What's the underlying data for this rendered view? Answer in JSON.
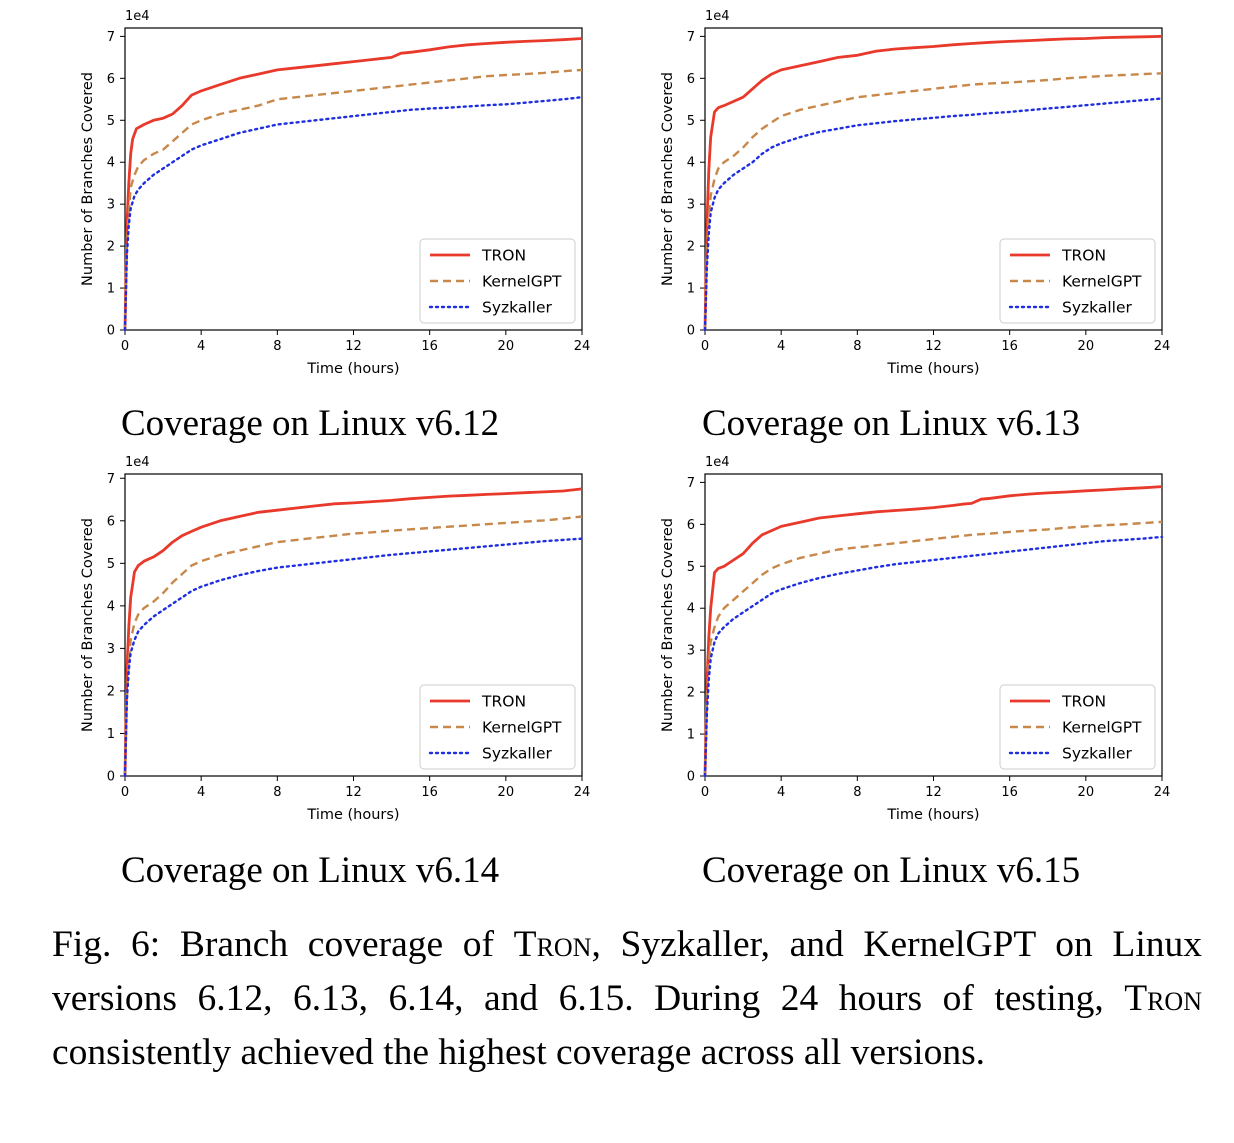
{
  "figure": {
    "caption_prefix": "Fig. 6: Branch coverage of ",
    "caption_tron1": "Tron",
    "caption_mid": ", Syzkaller, and KernelGPT on Linux versions 6.12, 6.13, 6.14, and 6.15. During 24 hours of testing, ",
    "caption_tron2": "Tron",
    "caption_suffix": " consistently achieved the highest coverage across all versions."
  },
  "chart_data": [
    {
      "type": "line",
      "subcaption": "Coverage on Linux v6.12",
      "xlabel": "Time (hours)",
      "ylabel": "Number of Branches Covered",
      "xlim": [
        0,
        24
      ],
      "ylim": [
        0,
        7.2
      ],
      "y_multiplier": "1e4",
      "xticks": [
        "0",
        "4",
        "8",
        "12",
        "16",
        "20",
        "24"
      ],
      "yticks": [
        "0",
        "1",
        "2",
        "3",
        "4",
        "5",
        "6",
        "7"
      ],
      "legend": "lower-right",
      "series": [
        {
          "name": "TRON",
          "color": "#e8392b",
          "style": "solid",
          "x": [
            0,
            0.1,
            0.2,
            0.3,
            0.4,
            0.6,
            0.8,
            1.0,
            1.5,
            2.0,
            2.5,
            3.0,
            3.5,
            4.0,
            5.0,
            6.0,
            7.0,
            8.0,
            9.0,
            10.0,
            11.0,
            12.0,
            13.0,
            14.0,
            14.5,
            15.0,
            16.0,
            17.0,
            18.0,
            19.0,
            20.0,
            21.0,
            22.0,
            23.0,
            24.0
          ],
          "y": [
            0,
            2.5,
            3.5,
            4.2,
            4.55,
            4.8,
            4.85,
            4.9,
            5.0,
            5.05,
            5.15,
            5.35,
            5.6,
            5.7,
            5.85,
            6.0,
            6.1,
            6.2,
            6.25,
            6.3,
            6.35,
            6.4,
            6.45,
            6.5,
            6.6,
            6.62,
            6.68,
            6.75,
            6.8,
            6.83,
            6.86,
            6.88,
            6.9,
            6.92,
            6.95
          ]
        },
        {
          "name": "KernelGPT",
          "color": "#c8884a",
          "style": "dashed",
          "x": [
            0,
            0.1,
            0.2,
            0.3,
            0.5,
            0.7,
            1.0,
            1.5,
            2.0,
            2.5,
            3.0,
            3.5,
            4.0,
            5.0,
            6.0,
            7.0,
            8.0,
            9.0,
            10.0,
            11.0,
            12.0,
            13.0,
            14.0,
            15.0,
            16.0,
            17.0,
            18.0,
            19.0,
            20.0,
            21.0,
            22.0,
            23.0,
            24.0
          ],
          "y": [
            0,
            2.0,
            2.8,
            3.4,
            3.7,
            3.9,
            4.05,
            4.2,
            4.3,
            4.5,
            4.7,
            4.9,
            5.0,
            5.15,
            5.25,
            5.35,
            5.5,
            5.55,
            5.6,
            5.65,
            5.7,
            5.75,
            5.8,
            5.85,
            5.9,
            5.95,
            6.0,
            6.05,
            6.08,
            6.1,
            6.13,
            6.17,
            6.2
          ]
        },
        {
          "name": "Syzkaller",
          "color": "#1f2fe0",
          "style": "dotted",
          "x": [
            0,
            0.1,
            0.2,
            0.3,
            0.5,
            0.7,
            1.0,
            1.5,
            2.0,
            2.5,
            3.0,
            3.5,
            4.0,
            5.0,
            6.0,
            7.0,
            8.0,
            9.0,
            10.0,
            11.0,
            12.0,
            13.0,
            14.0,
            15.0,
            16.0,
            17.0,
            18.0,
            19.0,
            20.0,
            21.0,
            22.0,
            23.0,
            24.0
          ],
          "y": [
            0,
            1.8,
            2.5,
            2.9,
            3.2,
            3.35,
            3.5,
            3.7,
            3.85,
            4.0,
            4.15,
            4.3,
            4.4,
            4.55,
            4.7,
            4.8,
            4.9,
            4.95,
            5.0,
            5.05,
            5.1,
            5.15,
            5.2,
            5.25,
            5.28,
            5.3,
            5.33,
            5.36,
            5.38,
            5.42,
            5.46,
            5.5,
            5.55
          ]
        }
      ]
    },
    {
      "type": "line",
      "subcaption": "Coverage on Linux v6.13",
      "xlabel": "Time (hours)",
      "ylabel": "Number of Branches Covered",
      "xlim": [
        0,
        24
      ],
      "ylim": [
        0,
        7.2
      ],
      "y_multiplier": "1e4",
      "xticks": [
        "0",
        "4",
        "8",
        "12",
        "16",
        "20",
        "24"
      ],
      "yticks": [
        "0",
        "1",
        "2",
        "3",
        "4",
        "5",
        "6",
        "7"
      ],
      "legend": "lower-right",
      "series": [
        {
          "name": "TRON",
          "color": "#e8392b",
          "style": "solid",
          "x": [
            0,
            0.1,
            0.2,
            0.3,
            0.5,
            0.7,
            1.0,
            1.5,
            2.0,
            2.5,
            3.0,
            3.5,
            4.0,
            5.0,
            6.0,
            7.0,
            8.0,
            9.0,
            10.0,
            11.0,
            12.0,
            13.0,
            14.0,
            15.0,
            16.0,
            17.0,
            18.0,
            19.0,
            20.0,
            21.0,
            22.0,
            23.0,
            24.0
          ],
          "y": [
            0,
            2.5,
            3.8,
            4.6,
            5.2,
            5.3,
            5.35,
            5.45,
            5.55,
            5.75,
            5.95,
            6.1,
            6.2,
            6.3,
            6.4,
            6.5,
            6.55,
            6.65,
            6.7,
            6.73,
            6.76,
            6.8,
            6.83,
            6.86,
            6.88,
            6.9,
            6.92,
            6.94,
            6.95,
            6.97,
            6.98,
            6.99,
            7.0
          ]
        },
        {
          "name": "KernelGPT",
          "color": "#c8884a",
          "style": "dashed",
          "x": [
            0,
            0.1,
            0.2,
            0.3,
            0.5,
            0.7,
            1.0,
            1.5,
            2.0,
            2.5,
            3.0,
            3.5,
            4.0,
            5.0,
            6.0,
            7.0,
            8.0,
            9.0,
            10.0,
            11.0,
            12.0,
            13.0,
            14.0,
            15.0,
            16.0,
            17.0,
            18.0,
            19.0,
            20.0,
            21.0,
            22.0,
            23.0,
            24.0
          ],
          "y": [
            0,
            1.8,
            2.7,
            3.2,
            3.6,
            3.85,
            4.0,
            4.15,
            4.35,
            4.6,
            4.8,
            4.95,
            5.1,
            5.25,
            5.35,
            5.45,
            5.55,
            5.6,
            5.65,
            5.7,
            5.75,
            5.8,
            5.85,
            5.88,
            5.9,
            5.93,
            5.96,
            6.0,
            6.03,
            6.06,
            6.08,
            6.1,
            6.12
          ]
        },
        {
          "name": "Syzkaller",
          "color": "#1f2fe0",
          "style": "dotted",
          "x": [
            0,
            0.1,
            0.2,
            0.3,
            0.5,
            0.7,
            1.0,
            1.5,
            2.0,
            2.5,
            3.0,
            3.5,
            4.0,
            5.0,
            6.0,
            7.0,
            8.0,
            9.0,
            10.0,
            11.0,
            12.0,
            13.0,
            14.0,
            15.0,
            16.0,
            17.0,
            18.0,
            19.0,
            20.0,
            21.0,
            22.0,
            23.0,
            24.0
          ],
          "y": [
            0,
            1.5,
            2.3,
            2.8,
            3.15,
            3.35,
            3.5,
            3.7,
            3.85,
            4.0,
            4.2,
            4.35,
            4.45,
            4.6,
            4.72,
            4.8,
            4.88,
            4.93,
            4.98,
            5.02,
            5.06,
            5.1,
            5.13,
            5.17,
            5.2,
            5.24,
            5.28,
            5.32,
            5.36,
            5.4,
            5.44,
            5.48,
            5.52
          ]
        }
      ]
    },
    {
      "type": "line",
      "subcaption": "Coverage on Linux v6.14",
      "xlabel": "Time (hours)",
      "ylabel": "Number of Branches Covered",
      "xlim": [
        0,
        24
      ],
      "ylim": [
        0,
        7.1
      ],
      "y_multiplier": "1e4",
      "xticks": [
        "0",
        "4",
        "8",
        "12",
        "16",
        "20",
        "24"
      ],
      "yticks": [
        "0",
        "1",
        "2",
        "3",
        "4",
        "5",
        "6",
        "7"
      ],
      "legend": "lower-right",
      "series": [
        {
          "name": "TRON",
          "color": "#e8392b",
          "style": "solid",
          "x": [
            0,
            0.1,
            0.2,
            0.3,
            0.5,
            0.7,
            1.0,
            1.5,
            2.0,
            2.5,
            3.0,
            3.5,
            4.0,
            5.0,
            6.0,
            7.0,
            8.0,
            9.0,
            10.0,
            11.0,
            12.0,
            13.0,
            14.0,
            15.0,
            16.0,
            17.0,
            18.0,
            19.0,
            20.0,
            21.0,
            22.0,
            23.0,
            24.0
          ],
          "y": [
            0,
            2.5,
            3.5,
            4.2,
            4.8,
            4.95,
            5.05,
            5.15,
            5.3,
            5.5,
            5.65,
            5.75,
            5.85,
            6.0,
            6.1,
            6.2,
            6.25,
            6.3,
            6.35,
            6.4,
            6.42,
            6.45,
            6.48,
            6.52,
            6.55,
            6.58,
            6.6,
            6.62,
            6.64,
            6.66,
            6.68,
            6.7,
            6.75
          ]
        },
        {
          "name": "KernelGPT",
          "color": "#c8884a",
          "style": "dashed",
          "x": [
            0,
            0.1,
            0.2,
            0.3,
            0.5,
            0.7,
            1.0,
            1.5,
            2.0,
            2.5,
            3.0,
            3.5,
            4.0,
            5.0,
            6.0,
            7.0,
            8.0,
            9.0,
            10.0,
            11.0,
            12.0,
            13.0,
            14.0,
            15.0,
            16.0,
            17.0,
            18.0,
            19.0,
            20.0,
            21.0,
            22.0,
            23.0,
            24.0
          ],
          "y": [
            0,
            1.8,
            2.7,
            3.2,
            3.6,
            3.8,
            3.95,
            4.1,
            4.3,
            4.55,
            4.75,
            4.95,
            5.05,
            5.2,
            5.3,
            5.4,
            5.5,
            5.55,
            5.6,
            5.65,
            5.7,
            5.73,
            5.77,
            5.8,
            5.83,
            5.86,
            5.89,
            5.92,
            5.95,
            5.98,
            6.01,
            6.05,
            6.1
          ]
        },
        {
          "name": "Syzkaller",
          "color": "#1f2fe0",
          "style": "dotted",
          "x": [
            0,
            0.1,
            0.2,
            0.3,
            0.5,
            0.7,
            1.0,
            1.5,
            2.0,
            2.5,
            3.0,
            3.5,
            4.0,
            5.0,
            6.0,
            7.0,
            8.0,
            9.0,
            10.0,
            11.0,
            12.0,
            13.0,
            14.0,
            15.0,
            16.0,
            17.0,
            18.0,
            19.0,
            20.0,
            21.0,
            22.0,
            23.0,
            24.0
          ],
          "y": [
            0,
            1.8,
            2.5,
            2.9,
            3.2,
            3.4,
            3.55,
            3.75,
            3.9,
            4.05,
            4.2,
            4.35,
            4.45,
            4.6,
            4.72,
            4.82,
            4.9,
            4.95,
            5.0,
            5.05,
            5.1,
            5.15,
            5.2,
            5.24,
            5.28,
            5.32,
            5.36,
            5.4,
            5.44,
            5.48,
            5.52,
            5.55,
            5.58
          ]
        }
      ]
    },
    {
      "type": "line",
      "subcaption": "Coverage on Linux v6.15",
      "xlabel": "Time (hours)",
      "ylabel": "Number of Branches Covered",
      "xlim": [
        0,
        24
      ],
      "ylim": [
        0,
        7.2
      ],
      "y_multiplier": "1e4",
      "xticks": [
        "0",
        "4",
        "8",
        "12",
        "16",
        "20",
        "24"
      ],
      "yticks": [
        "0",
        "1",
        "2",
        "3",
        "4",
        "5",
        "6",
        "7"
      ],
      "legend": "lower-right",
      "series": [
        {
          "name": "TRON",
          "color": "#e8392b",
          "style": "solid",
          "x": [
            0,
            0.1,
            0.2,
            0.3,
            0.5,
            0.7,
            1.0,
            1.5,
            2.0,
            2.5,
            3.0,
            3.5,
            4.0,
            5.0,
            6.0,
            7.0,
            8.0,
            9.0,
            10.0,
            11.0,
            12.0,
            13.0,
            13.5,
            14.0,
            14.5,
            15.0,
            16.0,
            17.0,
            18.0,
            19.0,
            20.0,
            21.0,
            22.0,
            23.0,
            24.0
          ],
          "y": [
            0,
            2.2,
            3.3,
            4.0,
            4.85,
            4.95,
            5.0,
            5.15,
            5.3,
            5.55,
            5.75,
            5.85,
            5.95,
            6.05,
            6.15,
            6.2,
            6.25,
            6.3,
            6.33,
            6.36,
            6.4,
            6.45,
            6.48,
            6.5,
            6.6,
            6.62,
            6.68,
            6.72,
            6.75,
            6.77,
            6.8,
            6.82,
            6.85,
            6.87,
            6.9
          ]
        },
        {
          "name": "KernelGPT",
          "color": "#c8884a",
          "style": "dashed",
          "x": [
            0,
            0.1,
            0.2,
            0.3,
            0.5,
            0.7,
            1.0,
            1.5,
            2.0,
            2.5,
            3.0,
            3.5,
            4.0,
            5.0,
            6.0,
            7.0,
            8.0,
            9.0,
            10.0,
            11.0,
            12.0,
            13.0,
            14.0,
            15.0,
            16.0,
            17.0,
            18.0,
            19.0,
            20.0,
            21.0,
            22.0,
            23.0,
            24.0
          ],
          "y": [
            0,
            1.8,
            2.7,
            3.2,
            3.55,
            3.8,
            4.0,
            4.2,
            4.4,
            4.6,
            4.8,
            4.95,
            5.05,
            5.2,
            5.3,
            5.4,
            5.45,
            5.5,
            5.55,
            5.6,
            5.65,
            5.7,
            5.75,
            5.78,
            5.82,
            5.85,
            5.88,
            5.92,
            5.95,
            5.98,
            6.0,
            6.03,
            6.06
          ]
        },
        {
          "name": "Syzkaller",
          "color": "#1f2fe0",
          "style": "dotted",
          "x": [
            0,
            0.1,
            0.2,
            0.3,
            0.5,
            0.7,
            1.0,
            1.5,
            2.0,
            2.5,
            3.0,
            3.5,
            4.0,
            5.0,
            6.0,
            7.0,
            8.0,
            9.0,
            10.0,
            11.0,
            12.0,
            13.0,
            14.0,
            15.0,
            16.0,
            17.0,
            18.0,
            19.0,
            20.0,
            21.0,
            22.0,
            23.0,
            24.0
          ],
          "y": [
            0,
            1.5,
            2.3,
            2.8,
            3.2,
            3.4,
            3.55,
            3.75,
            3.9,
            4.05,
            4.2,
            4.35,
            4.45,
            4.6,
            4.72,
            4.82,
            4.9,
            4.98,
            5.05,
            5.1,
            5.15,
            5.2,
            5.25,
            5.3,
            5.35,
            5.4,
            5.45,
            5.5,
            5.55,
            5.6,
            5.63,
            5.66,
            5.7
          ]
        }
      ]
    }
  ]
}
